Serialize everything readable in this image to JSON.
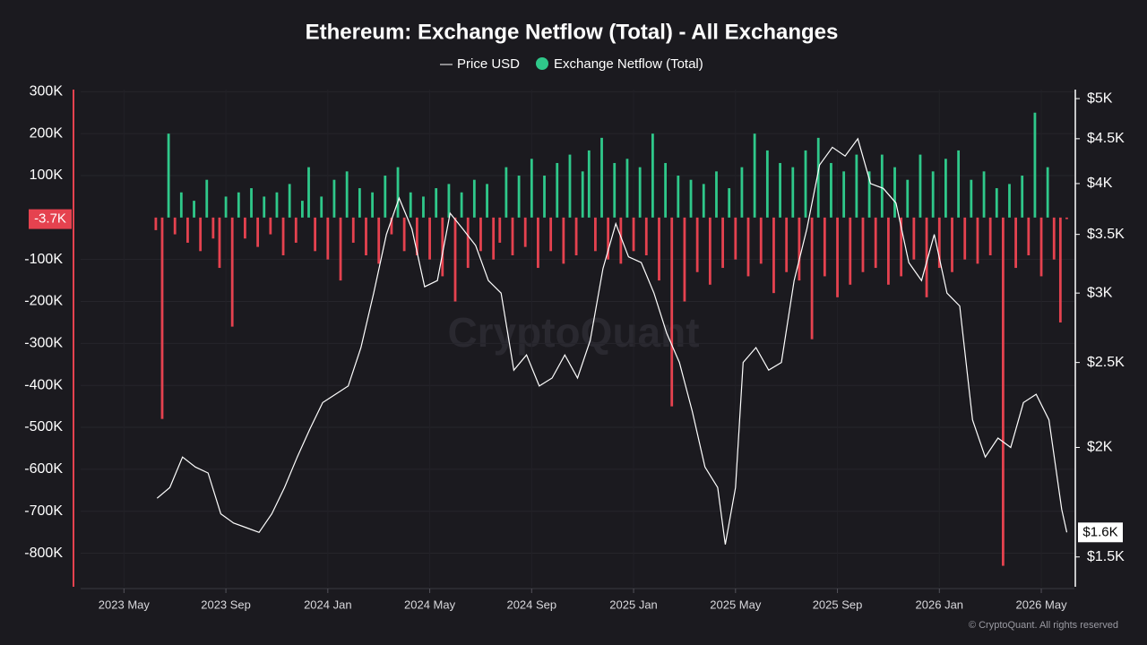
{
  "chart_data": {
    "type": "combo",
    "title": "Ethereum: Exchange Netflow (Total) - All Exchanges",
    "watermark": "CryptoQuant",
    "footer": "© CryptoQuant. All rights reserved",
    "xlim": [
      -1.7,
      37.3
    ],
    "xticks": [
      {
        "value": 0,
        "label": "2023 May"
      },
      {
        "value": 4,
        "label": "2023 Sep"
      },
      {
        "value": 8,
        "label": "2024 Jan"
      },
      {
        "value": 12,
        "label": "2024 May"
      },
      {
        "value": 16,
        "label": "2024 Sep"
      },
      {
        "value": 20,
        "label": "2025 Jan"
      },
      {
        "value": 24,
        "label": "2025 May"
      },
      {
        "value": 28,
        "label": "2025 Sep"
      },
      {
        "value": 32,
        "label": "2026 Jan"
      },
      {
        "value": 36,
        "label": "2026 May"
      }
    ],
    "ylim": [
      -880000,
      305000
    ],
    "yticks": [
      {
        "value": 300000,
        "label": "300K"
      },
      {
        "value": 200000,
        "label": "200K"
      },
      {
        "value": 100000,
        "label": "100K"
      },
      {
        "value": -100000,
        "label": "-100K"
      },
      {
        "value": -200000,
        "label": "-200K"
      },
      {
        "value": -300000,
        "label": "-300K"
      },
      {
        "value": -400000,
        "label": "-400K"
      },
      {
        "value": -500000,
        "label": "-500K"
      },
      {
        "value": -600000,
        "label": "-600K"
      },
      {
        "value": -700000,
        "label": "-700K"
      },
      {
        "value": -800000,
        "label": "-800K"
      }
    ],
    "y2lim": [
      1387,
      5120
    ],
    "y2log": true,
    "y2ticks": [
      {
        "value": 5000,
        "label": "$5K"
      },
      {
        "value": 4500,
        "label": "$4.5K"
      },
      {
        "value": 4000,
        "label": "$4K"
      },
      {
        "value": 3500,
        "label": "$3.5K"
      },
      {
        "value": 3000,
        "label": "$3K"
      },
      {
        "value": 2500,
        "label": "$2.5K"
      },
      {
        "value": 2000,
        "label": "$2K"
      },
      {
        "value": 1500,
        "label": "$1.5K"
      }
    ],
    "grid": true,
    "netflow_last_label": "-3.7K",
    "price_last_label": "$1.6K",
    "series": [
      {
        "name": "Price USD",
        "type": "line",
        "axis": "y2",
        "color": "#ffffff",
        "x": [
          1.3,
          1.8,
          2.3,
          2.8,
          3.3,
          3.8,
          4.3,
          4.8,
          5.3,
          5.8,
          6.3,
          6.8,
          7.3,
          7.8,
          8.3,
          8.8,
          9.3,
          9.8,
          10.3,
          10.8,
          11.3,
          11.8,
          12.3,
          12.8,
          13.3,
          13.8,
          14.3,
          14.8,
          15.3,
          15.8,
          16.3,
          16.8,
          17.3,
          17.8,
          18.3,
          18.8,
          19.3,
          19.8,
          20.3,
          20.8,
          21.3,
          21.8,
          22.3,
          22.8,
          23.3,
          23.6,
          24.0,
          24.3,
          24.8,
          25.3,
          25.8,
          26.3,
          26.8,
          27.3,
          27.8,
          28.3,
          28.8,
          29.3,
          29.8,
          30.3,
          30.8,
          31.3,
          31.8,
          32.3,
          32.8,
          33.3,
          33.8,
          34.3,
          34.8,
          35.3,
          35.8,
          36.3,
          36.8,
          37.0
        ],
        "values": [
          1750,
          1800,
          1950,
          1900,
          1870,
          1680,
          1640,
          1620,
          1600,
          1680,
          1800,
          1950,
          2100,
          2250,
          2300,
          2350,
          2600,
          3000,
          3500,
          3850,
          3550,
          3050,
          3100,
          3700,
          3550,
          3400,
          3100,
          3000,
          2450,
          2550,
          2350,
          2400,
          2550,
          2400,
          2650,
          3200,
          3600,
          3300,
          3250,
          3000,
          2700,
          2500,
          2200,
          1900,
          1800,
          1550,
          1800,
          2500,
          2600,
          2450,
          2500,
          3100,
          3550,
          4200,
          4400,
          4300,
          4500,
          4000,
          3950,
          3800,
          3250,
          3100,
          3500,
          3000,
          2900,
          2150,
          1950,
          2050,
          2000,
          2250,
          2300,
          2150,
          1700,
          1600
        ]
      },
      {
        "name": "Exchange Netflow (Total)",
        "type": "bar",
        "color": "#2fc88a",
        "negative_color": "#e5424f",
        "x": [
          1.25,
          1.5,
          1.75,
          2.0,
          2.25,
          2.5,
          2.75,
          3.0,
          3.25,
          3.5,
          3.75,
          4.0,
          4.25,
          4.5,
          4.75,
          5.0,
          5.25,
          5.5,
          5.75,
          6.0,
          6.25,
          6.5,
          6.75,
          7.0,
          7.25,
          7.5,
          7.75,
          8.0,
          8.25,
          8.5,
          8.75,
          9.0,
          9.25,
          9.5,
          9.75,
          10.0,
          10.25,
          10.5,
          10.75,
          11.0,
          11.25,
          11.5,
          11.75,
          12.0,
          12.25,
          12.5,
          12.75,
          13.0,
          13.25,
          13.5,
          13.75,
          14.0,
          14.25,
          14.5,
          14.75,
          15.0,
          15.25,
          15.5,
          15.75,
          16.0,
          16.25,
          16.5,
          16.75,
          17.0,
          17.25,
          17.5,
          17.75,
          18.0,
          18.25,
          18.5,
          18.75,
          19.0,
          19.25,
          19.5,
          19.75,
          20.0,
          20.25,
          20.5,
          20.75,
          21.0,
          21.25,
          21.5,
          21.75,
          22.0,
          22.25,
          22.5,
          22.75,
          23.0,
          23.25,
          23.5,
          23.75,
          24.0,
          24.25,
          24.5,
          24.75,
          25.0,
          25.25,
          25.5,
          25.75,
          26.0,
          26.25,
          26.5,
          26.75,
          27.0,
          27.25,
          27.5,
          27.75,
          28.0,
          28.25,
          28.5,
          28.75,
          29.0,
          29.25,
          29.5,
          29.75,
          30.0,
          30.25,
          30.5,
          30.75,
          31.0,
          31.25,
          31.5,
          31.75,
          32.0,
          32.25,
          32.5,
          32.75,
          33.0,
          33.25,
          33.5,
          33.75,
          34.0,
          34.25,
          34.5,
          34.75,
          35.0,
          35.25,
          35.5,
          35.75,
          36.0,
          36.25,
          36.5,
          36.75,
          37.0
        ],
        "values": [
          -30000,
          -480000,
          200000,
          -40000,
          60000,
          -60000,
          40000,
          -80000,
          90000,
          -50000,
          -120000,
          50000,
          -260000,
          60000,
          -50000,
          70000,
          -70000,
          50000,
          -40000,
          60000,
          -90000,
          80000,
          -60000,
          40000,
          120000,
          -80000,
          50000,
          -100000,
          90000,
          -150000,
          110000,
          -60000,
          70000,
          -90000,
          60000,
          -110000,
          100000,
          -40000,
          120000,
          -80000,
          60000,
          -90000,
          50000,
          -100000,
          70000,
          -140000,
          80000,
          -200000,
          60000,
          -120000,
          90000,
          -80000,
          80000,
          -100000,
          -60000,
          120000,
          -90000,
          100000,
          -70000,
          140000,
          -120000,
          100000,
          -80000,
          130000,
          -110000,
          150000,
          -90000,
          110000,
          160000,
          -80000,
          190000,
          -100000,
          130000,
          -110000,
          140000,
          -80000,
          120000,
          -90000,
          200000,
          -150000,
          130000,
          -450000,
          100000,
          -200000,
          90000,
          -130000,
          80000,
          -160000,
          110000,
          -120000,
          70000,
          -100000,
          120000,
          -140000,
          200000,
          -110000,
          160000,
          -180000,
          130000,
          -130000,
          120000,
          -150000,
          160000,
          -290000,
          190000,
          -140000,
          130000,
          -190000,
          110000,
          -160000,
          150000,
          -130000,
          110000,
          -120000,
          150000,
          -160000,
          120000,
          -140000,
          90000,
          -100000,
          150000,
          -190000,
          110000,
          -120000,
          140000,
          -130000,
          160000,
          -100000,
          90000,
          -110000,
          110000,
          -90000,
          70000,
          -830000,
          80000,
          -120000,
          100000,
          -90000,
          250000,
          -140000,
          120000,
          -100000,
          -250000,
          -3700
        ]
      }
    ]
  }
}
